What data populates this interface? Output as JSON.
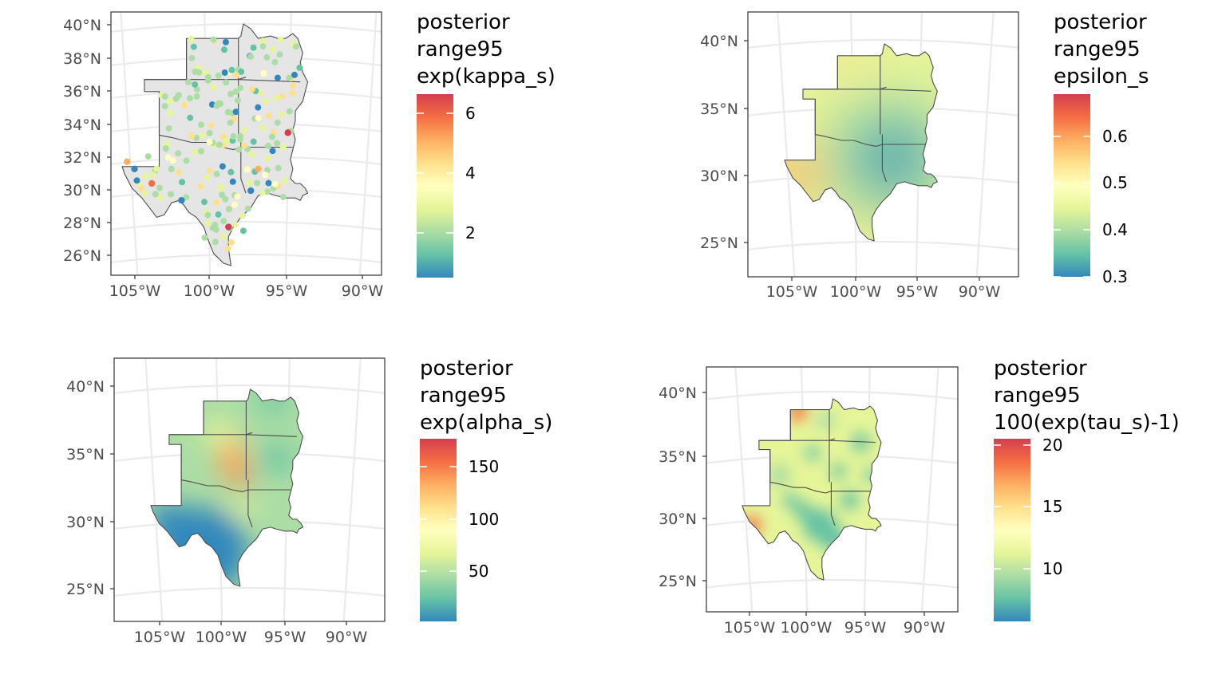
{
  "panels": [
    {
      "id": "kappa",
      "legend_title": [
        "posterior",
        "range95",
        "exp(kappa_s)"
      ],
      "legend_ticks": [
        "6",
        "4",
        "2"
      ],
      "lat_labels": [
        "40°N",
        "38°N",
        "36°N",
        "34°N",
        "32°N",
        "30°N",
        "28°N",
        "26°N"
      ],
      "lon_labels": [
        "105°W",
        "100°W",
        "95°W",
        "90°W"
      ],
      "display": "station points"
    },
    {
      "id": "epsilon",
      "legend_title": [
        "posterior",
        "range95",
        "epsilon_s"
      ],
      "legend_ticks": [
        "0.6",
        "0.5",
        "0.4",
        "0.3"
      ],
      "lat_labels": [
        "40°N",
        "35°N",
        "30°N",
        "25°N"
      ],
      "lon_labels": [
        "105°W",
        "100°W",
        "95°W",
        "90°W"
      ],
      "display": "smooth surface"
    },
    {
      "id": "alpha",
      "legend_title": [
        "posterior",
        "range95",
        "exp(alpha_s)"
      ],
      "legend_ticks": [
        "150",
        "100",
        "50"
      ],
      "lat_labels": [
        "40°N",
        "35°N",
        "30°N",
        "25°N"
      ],
      "lon_labels": [
        "105°W",
        "100°W",
        "95°W",
        "90°W"
      ],
      "display": "smooth surface"
    },
    {
      "id": "tau",
      "legend_title": [
        "posterior",
        "range95",
        "100(exp(tau_s)-1)"
      ],
      "legend_ticks": [
        "20",
        "15",
        "10"
      ],
      "lat_labels": [
        "40°N",
        "35°N",
        "30°N",
        "25°N"
      ],
      "lon_labels": [
        "105°W",
        "100°W",
        "95°W",
        "90°W"
      ],
      "display": "smooth surface"
    }
  ],
  "colors": {
    "palette_spectral": [
      "#3288bd",
      "#66c2a5",
      "#abdda4",
      "#e6f598",
      "#ffffbf",
      "#fee08b",
      "#fdae61",
      "#f46d43",
      "#d53e4f"
    ],
    "state_fill": "#e5e5e5",
    "grid": "#ebebeb"
  }
}
